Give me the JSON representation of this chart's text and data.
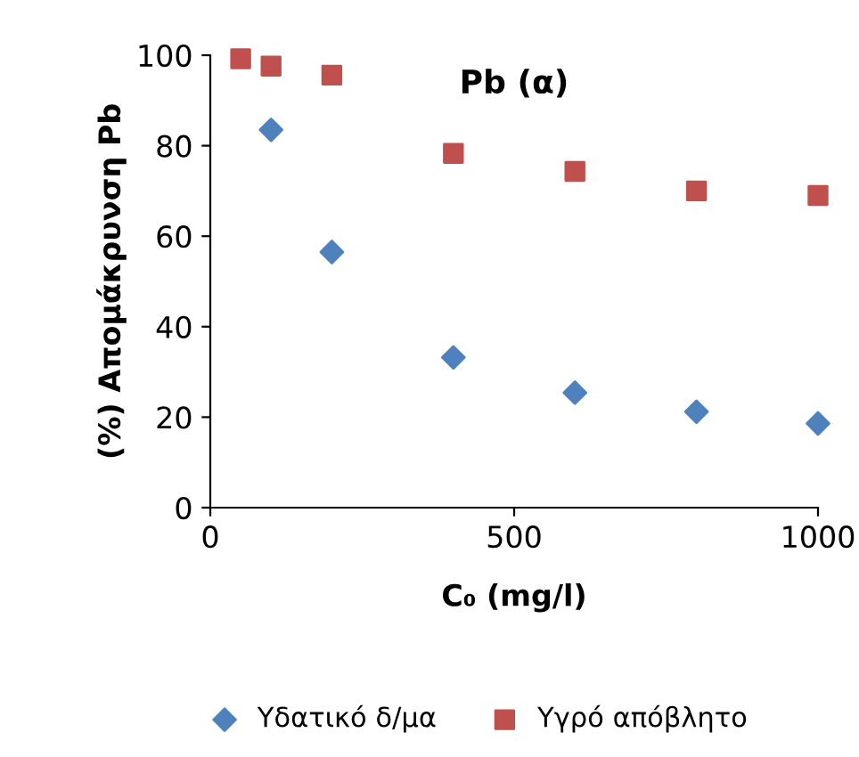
{
  "chart_data": {
    "type": "scatter",
    "title": "Pb (α)",
    "xlabel": "C₀ (mg/l)",
    "ylabel": "(%) Απομάκρυνση Pb",
    "x": [
      50,
      100,
      200,
      400,
      600,
      800,
      1000
    ],
    "series": [
      {
        "name": "Υδατικό δ/μα",
        "color": "#4f81bd",
        "marker": "diamond",
        "values": [
          null,
          83.5,
          56.5,
          33.2,
          25.4,
          21.2,
          18.6
        ]
      },
      {
        "name": "Υγρό απόβλητο",
        "color": "#c0504d",
        "marker": "square",
        "values": [
          99.2,
          97.6,
          95.6,
          78.3,
          74.3,
          70,
          69
        ]
      }
    ],
    "xlim": [
      0,
      1000
    ],
    "xticks": [
      0,
      500,
      1000
    ],
    "ylim": [
      0,
      100
    ],
    "yticks": [
      0,
      20,
      40,
      60,
      80,
      100
    ],
    "grid": false,
    "legend": "bottom"
  }
}
